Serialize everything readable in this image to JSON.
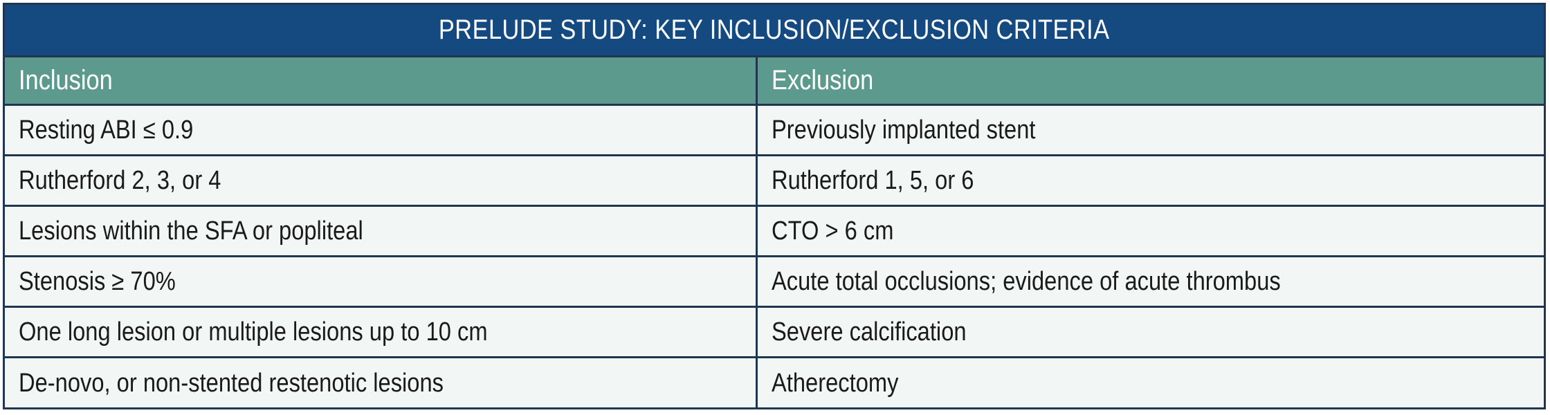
{
  "title": "PRELUDE STUDY: KEY INCLUSION/EXCLUSION CRITERIA",
  "headers": {
    "inclusion": "Inclusion",
    "exclusion": "Exclusion"
  },
  "rows": [
    {
      "inclusion": "Resting ABI ≤ 0.9",
      "exclusion": "Previously implanted stent"
    },
    {
      "inclusion": "Rutherford 2, 3, or 4",
      "exclusion": "Rutherford 1, 5, or 6"
    },
    {
      "inclusion": "Lesions within the SFA or popliteal",
      "exclusion": "CTO > 6 cm"
    },
    {
      "inclusion": "Stenosis ≥ 70%",
      "exclusion": "Acute total occlusions; evidence of acute thrombus"
    },
    {
      "inclusion": "One long lesion or multiple lesions up to 10 cm",
      "exclusion": "Severe calcification"
    },
    {
      "inclusion": "De-novo, or non-stented restenotic lesions",
      "exclusion": "Atherectomy"
    }
  ],
  "colors": {
    "title_bg": "#144a80",
    "header_bg": "#5b9a8c",
    "body_bg": "#f2f7f6",
    "border": "#1f3550"
  }
}
